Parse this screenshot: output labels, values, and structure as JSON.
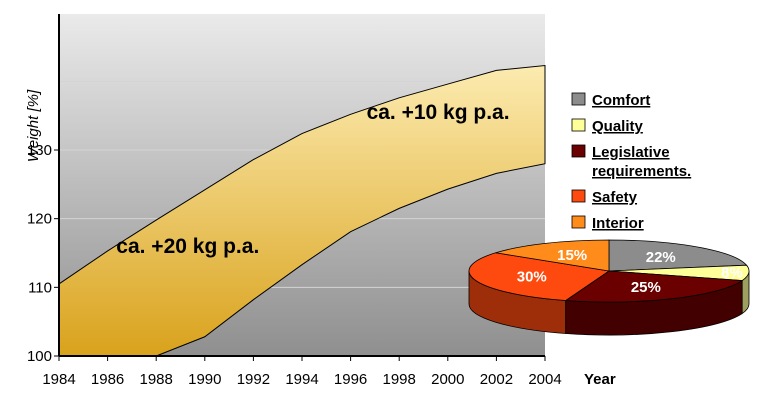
{
  "chart_data": [
    {
      "type": "area",
      "title": "",
      "xlabel": "Year",
      "ylabel": "Weight [%]",
      "xlim": [
        1984,
        2004
      ],
      "ylim": [
        100,
        140
      ],
      "x_ticks": [
        "1984",
        "1986",
        "1988",
        "1990",
        "1992",
        "1994",
        "1996",
        "1998",
        "2000",
        "2002",
        "2004"
      ],
      "y_ticks": [
        "100",
        "110",
        "120",
        "130"
      ],
      "grid": true,
      "band": {
        "x": [
          1984,
          1986,
          1988,
          1990,
          1992,
          1994,
          1996,
          1998,
          2000,
          2002,
          2004
        ],
        "upper": [
          110.5,
          115.3,
          119.8,
          124.2,
          128.6,
          132.4,
          135.2,
          137.6,
          139.6,
          141.6,
          142.3
        ],
        "lower": [
          null,
          null,
          100,
          102.8,
          108.2,
          113.3,
          118.1,
          121.5,
          124.3,
          126.6,
          128.0
        ]
      },
      "annotations": [
        {
          "text": "ca. +10 kg p.a.",
          "x": 1999.6,
          "y": 134.5
        },
        {
          "text": "ca. +20 kg p.a.",
          "x": 1989.3,
          "y": 115.0
        }
      ],
      "colors": {
        "band_top": "#fcebb0",
        "band_bottom": "#d9a21c",
        "plot_bg_top": "#eaeaea",
        "plot_bg_bottom": "#8f8f8f"
      }
    },
    {
      "type": "pie",
      "title": "",
      "slices": [
        {
          "label": "Comfort",
          "value": 22,
          "display": "22%",
          "color": "#8c8c8c"
        },
        {
          "label": "Quality",
          "value": 8,
          "display": "8%",
          "color": "#ffff99"
        },
        {
          "label": "Legislative requirements.",
          "value": 25,
          "display": "25%",
          "color": "#6b0000"
        },
        {
          "label": "Safety",
          "value": 30,
          "display": "30%",
          "color": "#ff4a0f"
        },
        {
          "label": "Interior",
          "value": 15,
          "display": "15%",
          "color": "#ff8c1a"
        }
      ],
      "legend": {
        "placement": "right",
        "entries": [
          {
            "line1": "Comfort",
            "line2": "",
            "color": "#8c8c8c"
          },
          {
            "line1": "Quality",
            "line2": "",
            "color": "#ffff99"
          },
          {
            "line1": "Legislative",
            "line2": "requirements.",
            "color": "#6b0000"
          },
          {
            "line1": "Safety",
            "line2": "",
            "color": "#ff4a0f"
          },
          {
            "line1": "Interior",
            "line2": "",
            "color": "#ff8c1a"
          }
        ]
      }
    }
  ]
}
